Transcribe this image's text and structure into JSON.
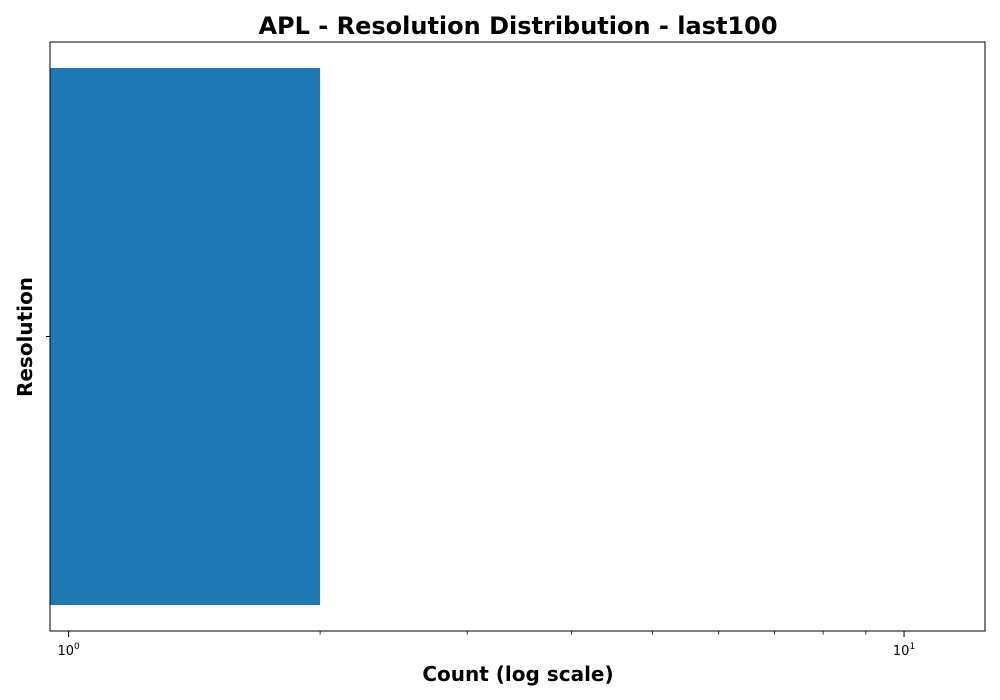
{
  "chart_data": {
    "type": "bar",
    "orientation": "horizontal",
    "title": "APL - Resolution Distribution - last100",
    "xlabel": "Count (log scale)",
    "ylabel": "Resolution",
    "x_scale": "log",
    "xlim": [
      0.95,
      12.5
    ],
    "x_ticks": [
      {
        "value": 1,
        "base": "10",
        "exp": "0"
      },
      {
        "value": 10,
        "base": "10",
        "exp": "1"
      }
    ],
    "categories": [
      ""
    ],
    "values": [
      2
    ],
    "bar_color": "#1f77b4",
    "grid": false,
    "legend": "none"
  }
}
